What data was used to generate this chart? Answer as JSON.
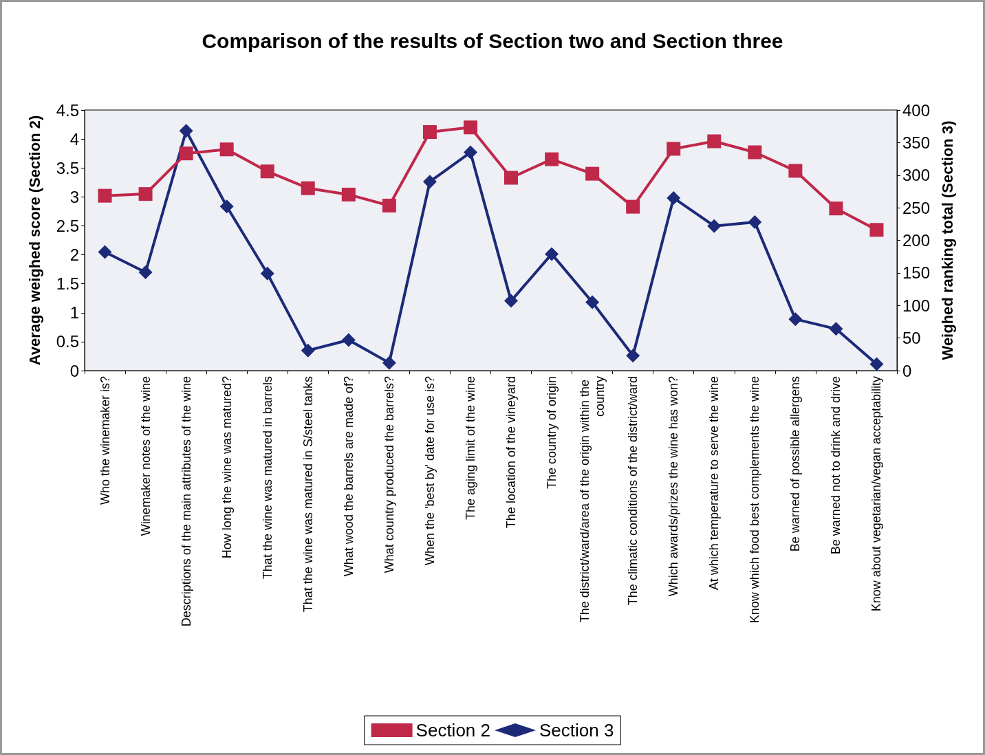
{
  "chart_data": {
    "type": "line",
    "title": "Comparison of the results of Section two and Section three",
    "ylabel": "Average weighed score (Section 2)",
    "y2label": "Weighed ranking total (Section 3)",
    "categories": [
      "Who the winemaker is?",
      "Winemaker notes of the wine",
      "Descriptions of the main attributes of the wine",
      "How long the wine was matured?",
      "That the wine was matured in barrels",
      "That the wine was matured in S/steel tanks",
      "What wood the barrels are made of?",
      "What country produced the barrels?",
      "When the 'best by' date for use is?",
      "The aging limit of the wine",
      "The location of the vineyard",
      "The country of origin",
      "The district/ward/area of the origin within the country",
      "The climatic conditions of the district/ward",
      "Which awards/prizes the wine has won?",
      "At which temperature to serve the wine",
      "Know which food best complements the wine",
      "Be warned of possible allergens",
      "Be warned not to drink and drive",
      "Know about vegetarian/vegan acceptability"
    ],
    "series": [
      {
        "name": "Section 2",
        "color": "#c0284a",
        "marker": "square",
        "values": [
          3.02,
          3.05,
          3.75,
          3.82,
          3.44,
          3.15,
          3.04,
          2.85,
          4.12,
          4.2,
          3.33,
          3.65,
          3.4,
          2.83,
          3.83,
          3.96,
          3.77,
          3.45,
          2.8,
          2.43
        ]
      },
      {
        "name": "Section 3",
        "color": "#1c2a78",
        "marker": "diamond",
        "axis": "y2",
        "values": [
          182,
          151,
          368,
          252,
          149,
          31,
          47,
          12,
          290,
          335,
          107,
          179,
          105,
          23,
          265,
          222,
          228,
          79,
          64,
          10
        ]
      }
    ],
    "ylim": [
      0,
      4.5
    ],
    "yticks": [
      0,
      0.5,
      1,
      1.5,
      2,
      2.5,
      3,
      3.5,
      4,
      4.5
    ],
    "y2lim": [
      0,
      400
    ],
    "y2ticks": [
      0,
      50,
      100,
      150,
      200,
      250,
      300,
      350,
      400
    ],
    "grid": false,
    "legend": "bottom",
    "line_style": "solid"
  }
}
